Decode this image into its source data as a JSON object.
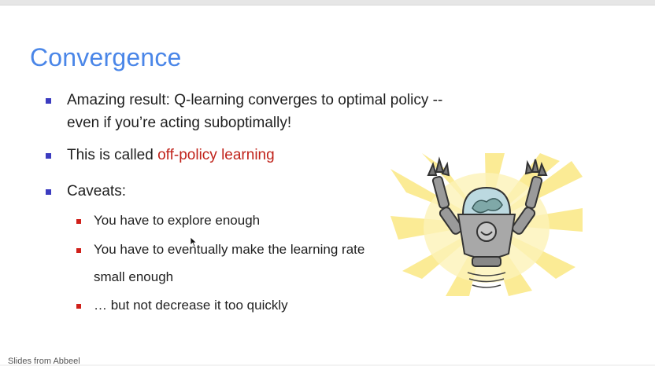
{
  "slide": {
    "title": "Convergence",
    "bullets": [
      {
        "line1": "Amazing result: Q-learning converges to optimal policy --",
        "line2": "even if you’re acting suboptimally!"
      },
      {
        "prefix": "This is called ",
        "highlight": "off-policy learning"
      },
      {
        "text": "Caveats:"
      }
    ],
    "caveats": [
      "You have to explore enough",
      "You have to eventually make the learning rate",
      "small enough",
      "… but not decrease it too quickly"
    ],
    "footer": "Slides from Abbeel"
  },
  "colors": {
    "title": "#4a86e8",
    "highlight": "#c0221a",
    "bullet_primary": "#3c3cc0",
    "bullet_secondary": "#d0201a"
  },
  "icons": {
    "illustration": "robot-arms-raised",
    "pointer": "mouse-cursor-icon"
  }
}
